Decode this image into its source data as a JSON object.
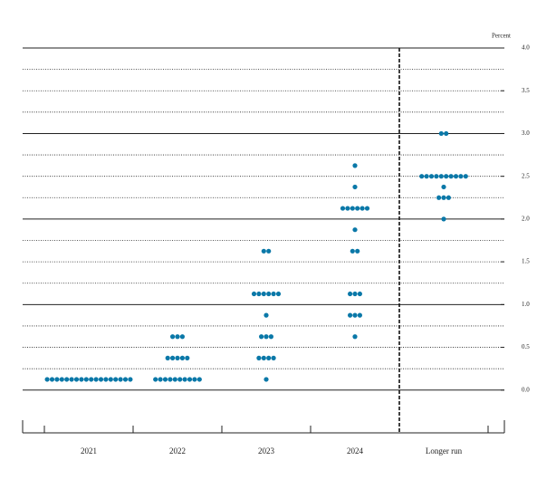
{
  "chart_data": {
    "type": "dot",
    "y_label": "Percent",
    "categories": [
      "2021",
      "2022",
      "2023",
      "2024",
      "Longer run"
    ],
    "dots": [
      [
        {
          "rate": 0.125,
          "count": 18
        }
      ],
      [
        {
          "rate": 0.625,
          "count": 3
        },
        {
          "rate": 0.375,
          "count": 5
        },
        {
          "rate": 0.125,
          "count": 10
        }
      ],
      [
        {
          "rate": 1.625,
          "count": 2
        },
        {
          "rate": 1.125,
          "count": 6
        },
        {
          "rate": 0.875,
          "count": 1
        },
        {
          "rate": 0.625,
          "count": 3
        },
        {
          "rate": 0.375,
          "count": 4
        },
        {
          "rate": 0.125,
          "count": 1
        }
      ],
      [
        {
          "rate": 2.625,
          "count": 1
        },
        {
          "rate": 2.375,
          "count": 1
        },
        {
          "rate": 2.125,
          "count": 6
        },
        {
          "rate": 1.875,
          "count": 1
        },
        {
          "rate": 1.625,
          "count": 2
        },
        {
          "rate": 1.125,
          "count": 3
        },
        {
          "rate": 0.875,
          "count": 3
        },
        {
          "rate": 0.625,
          "count": 1
        }
      ],
      [
        {
          "rate": 3.0,
          "count": 2
        },
        {
          "rate": 2.5,
          "count": 10
        },
        {
          "rate": 2.375,
          "count": 1
        },
        {
          "rate": 2.25,
          "count": 3
        },
        {
          "rate": 2.0,
          "count": 1
        }
      ]
    ],
    "color": "#0a78a8",
    "ylim": [
      -0.5,
      4.0
    ],
    "yticks": [
      {
        "value": 0,
        "label": "0.0"
      },
      0.5,
      {
        "value": 1,
        "label": "1.0"
      },
      1.5,
      {
        "value": 2,
        "label": "2.0"
      },
      2.5,
      {
        "value": 3,
        "label": "3.0"
      },
      3.5,
      {
        "value": 4,
        "label": "4.0"
      }
    ],
    "ygrid": [
      0,
      0.25,
      0.5,
      0.75,
      1,
      1.25,
      1.5,
      1.75,
      2,
      2.25,
      2.5,
      2.75,
      3,
      3.25,
      3.5,
      3.75,
      4
    ],
    "separator_before": 4
  }
}
